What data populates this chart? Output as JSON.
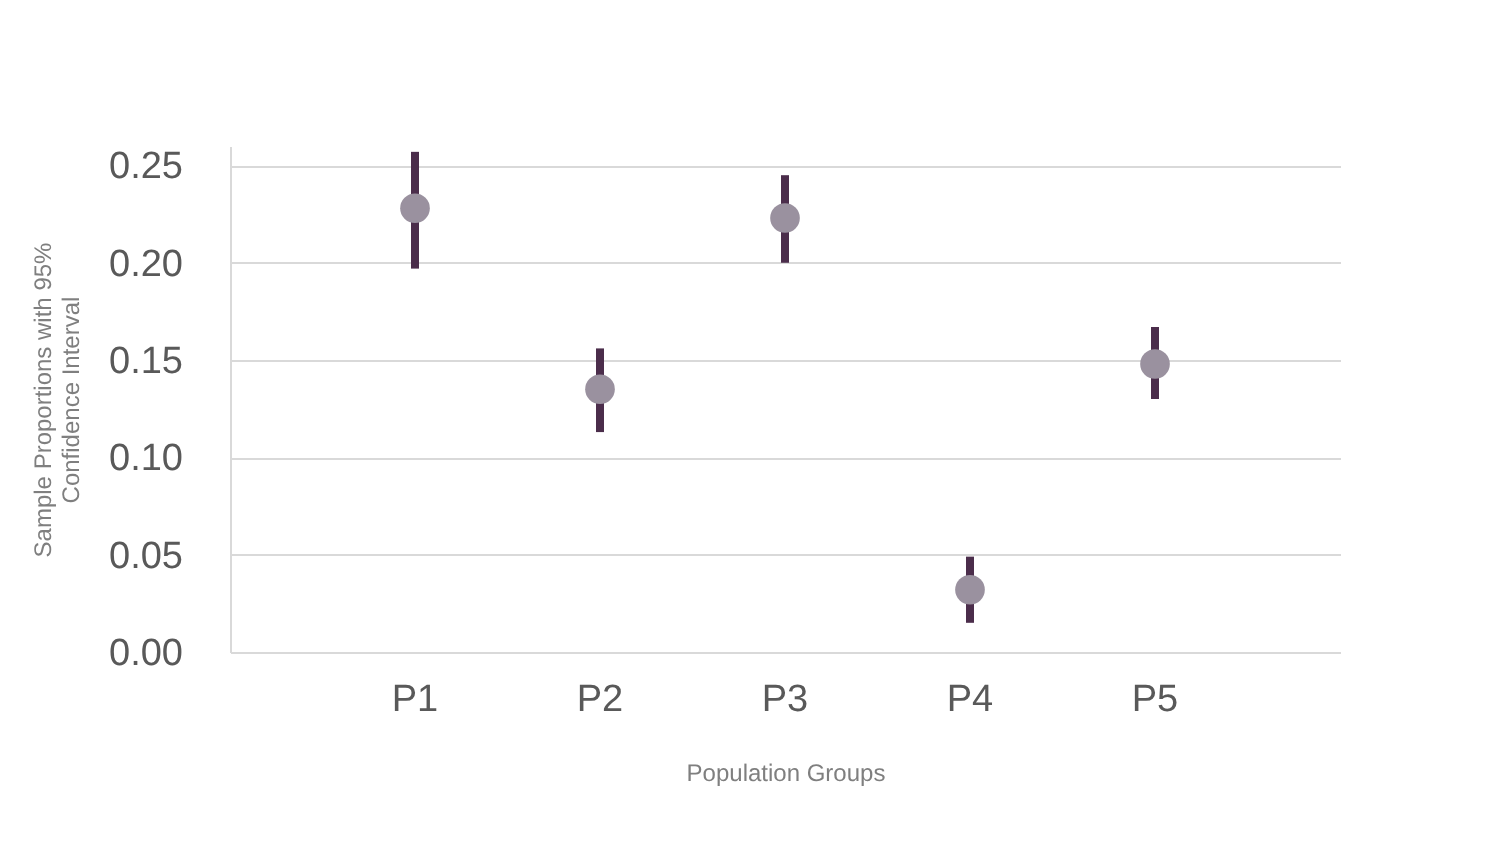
{
  "chart_data": {
    "type": "scatter",
    "xlabel": "Population Groups",
    "ylabel": "Sample Proportions with 95% Confidence Interval",
    "categories": [
      "P1",
      "P2",
      "P3",
      "P4",
      "P5"
    ],
    "series": [
      {
        "color": "#9a919f",
        "values": [
          0.228,
          0.135,
          0.223,
          0.032,
          0.148
        ],
        "errors": [
          [
            0.197,
            0.257
          ],
          [
            0.113,
            0.156
          ],
          [
            0.2,
            0.245
          ],
          [
            0.015,
            0.049
          ],
          [
            0.13,
            0.167
          ]
        ]
      }
    ],
    "ylim": [
      0,
      0.26
    ],
    "yticks": [
      {
        "value": 0,
        "label": "0.00"
      },
      {
        "value": 0.05,
        "label": "0.05"
      },
      {
        "value": 0.1,
        "label": "0.10"
      },
      {
        "value": 0.15,
        "label": "0.15"
      },
      {
        "value": 0.2,
        "label": "0.20"
      },
      {
        "value": 0.25,
        "label": "0.25"
      }
    ],
    "grid": "y",
    "marker": "circle"
  }
}
